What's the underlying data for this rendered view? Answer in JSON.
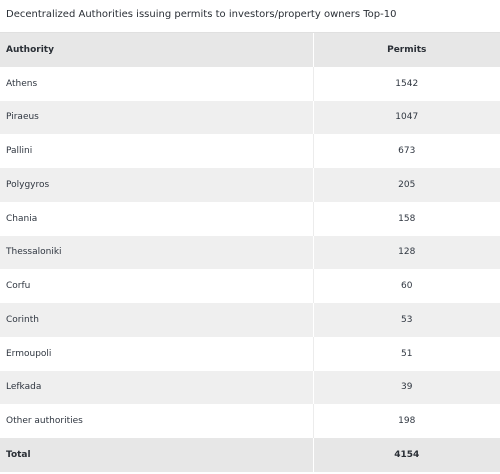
{
  "title": "Decentralized Authorities issuing permits to investors/property owners Top-10",
  "table": {
    "headers": [
      "Authority",
      "Permits"
    ],
    "rows": [
      [
        "Athens",
        "1542"
      ],
      [
        "Piraeus",
        "1047"
      ],
      [
        "Pallini",
        "673"
      ],
      [
        "Polygyros",
        "205"
      ],
      [
        "Chania",
        "158"
      ],
      [
        "Thessaloniki",
        "128"
      ],
      [
        "Corfu",
        "60"
      ],
      [
        "Corinth",
        "53"
      ],
      [
        "Ermoupoli",
        "51"
      ],
      [
        "Lefkada",
        "39"
      ],
      [
        "Other authorities",
        "198"
      ]
    ],
    "total": [
      "Total",
      "4154"
    ]
  },
  "colors": {
    "header_bg": "#e7e7e7",
    "stripe_bg": "#efefef",
    "row_bg": "#ffffff",
    "text": "#2f3640"
  }
}
